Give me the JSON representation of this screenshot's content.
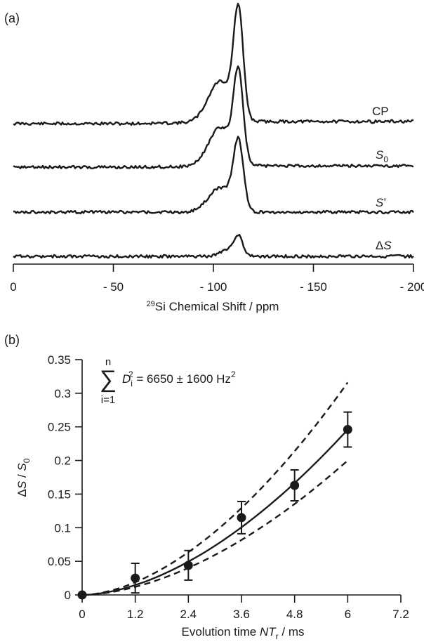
{
  "chart_data": [
    {
      "panel": "(a)",
      "type": "line",
      "xlabel_sup": "29",
      "xlabel": "Si Chemical Shift / ppm",
      "xlim": [
        0,
        -200
      ],
      "xticks": [
        0,
        -50,
        -100,
        -150,
        -200
      ],
      "xtick_labels": [
        "0",
        "- 50",
        "- 100",
        "- 150",
        "- 200"
      ],
      "series": [
        {
          "name": "CP",
          "name_italic": "",
          "name_sub": "",
          "baseline_shift": 3,
          "peaks": [
            {
              "center": -112.5,
              "width": 2.4,
              "height": 150
            },
            {
              "center": -104.5,
              "width": 5.5,
              "height": 50
            },
            {
              "center": -99.0,
              "width": 5.0,
              "height": 14
            }
          ]
        },
        {
          "name": "",
          "name_italic": "S",
          "name_sub": "0",
          "baseline_shift": 2,
          "peaks": [
            {
              "center": -112.5,
              "width": 2.4,
              "height": 125
            },
            {
              "center": -104.5,
              "width": 5.5,
              "height": 48
            },
            {
              "center": -99.0,
              "width": 5.0,
              "height": 12
            }
          ]
        },
        {
          "name": "’",
          "name_italic": "S",
          "name_sub": "",
          "baseline_shift": 0,
          "peaks": [
            {
              "center": -112.5,
              "width": 2.5,
              "height": 96
            },
            {
              "center": -104.5,
              "width": 5.5,
              "height": 30
            },
            {
              "center": -99.0,
              "width": 5.0,
              "height": 8
            }
          ]
        },
        {
          "name": "Δ",
          "name_italic": "S",
          "name_sub": "",
          "baseline_shift": 0,
          "peaks": [
            {
              "center": -112.5,
              "width": 2.2,
              "height": 26
            },
            {
              "center": -107.5,
              "width": 4.0,
              "height": 10
            }
          ]
        }
      ]
    },
    {
      "panel": "(b)",
      "type": "scatter",
      "xlabel": "Evolution time ",
      "xlabel_italic": "NT",
      "xlabel_sub": "r",
      "xlabel_tail": " / ms",
      "ylabel_pre": "Δ",
      "ylabel_italic1": "S",
      "ylabel_mid": " / ",
      "ylabel_italic2": "S",
      "ylabel_sub": "0",
      "xlim": [
        0,
        7.2
      ],
      "ylim": [
        0,
        0.35
      ],
      "xticks": [
        0,
        1.2,
        2.4,
        3.6,
        4.8,
        6,
        7.2
      ],
      "xtick_labels": [
        "0",
        "1.2",
        "2.4",
        "3.6",
        "4.8",
        "6",
        "7.2"
      ],
      "yticks": [
        0,
        0.05,
        0.1,
        0.15,
        0.2,
        0.25,
        0.3,
        0.35
      ],
      "ytick_labels": [
        "0",
        "0.05",
        "0.1",
        "0.15",
        "0.2",
        "0.25",
        "0.3",
        "0.35"
      ],
      "points": [
        {
          "x": 0,
          "y": 0,
          "err": 0
        },
        {
          "x": 1.2,
          "y": 0.025,
          "err": 0.022
        },
        {
          "x": 2.4,
          "y": 0.044,
          "err": 0.022
        },
        {
          "x": 3.6,
          "y": 0.115,
          "err": 0.024
        },
        {
          "x": 4.8,
          "y": 0.163,
          "err": 0.023
        },
        {
          "x": 6,
          "y": 0.246,
          "err": 0.026
        }
      ],
      "fit_curves": [
        {
          "style": "solid",
          "y_at_x_max": 0.246
        },
        {
          "style": "dashed",
          "y_at_x_max": 0.316
        },
        {
          "style": "dashed",
          "y_at_x_max": 0.2
        }
      ],
      "annotation": {
        "sum_symbol": "∑",
        "upper": "n",
        "lower": "i=1",
        "var_italic": "D",
        "var_sub": "i",
        "exp": "2",
        "rhs": " = 6650 ± 1600 Hz",
        "rhs_exp": "2"
      }
    }
  ]
}
